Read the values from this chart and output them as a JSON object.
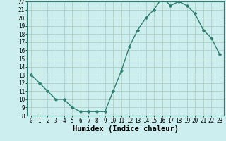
{
  "x": [
    0,
    1,
    2,
    3,
    4,
    5,
    6,
    7,
    8,
    9,
    10,
    11,
    12,
    13,
    14,
    15,
    16,
    17,
    18,
    19,
    20,
    21,
    22,
    23
  ],
  "y": [
    13.0,
    12.0,
    11.0,
    10.0,
    10.0,
    9.0,
    8.5,
    8.5,
    8.5,
    8.5,
    11.0,
    13.5,
    16.5,
    18.5,
    20.0,
    21.0,
    22.5,
    21.5,
    22.0,
    21.5,
    20.5,
    18.5,
    17.5,
    15.5
  ],
  "line_color": "#2e7d6e",
  "marker_color": "#2e7d6e",
  "bg_color": "#cceeee",
  "grid_color": "#aaccbb",
  "xlabel": "Humidex (Indice chaleur)",
  "xlim": [
    -0.5,
    23.5
  ],
  "ylim": [
    8,
    22
  ],
  "yticks": [
    8,
    9,
    10,
    11,
    12,
    13,
    14,
    15,
    16,
    17,
    18,
    19,
    20,
    21,
    22
  ],
  "xticks": [
    0,
    1,
    2,
    3,
    4,
    5,
    6,
    7,
    8,
    9,
    10,
    11,
    12,
    13,
    14,
    15,
    16,
    17,
    18,
    19,
    20,
    21,
    22,
    23
  ],
  "xtick_labels": [
    "0",
    "1",
    "2",
    "3",
    "4",
    "5",
    "6",
    "7",
    "8",
    "9",
    "10",
    "11",
    "12",
    "13",
    "14",
    "15",
    "16",
    "17",
    "18",
    "19",
    "20",
    "21",
    "22",
    "23"
  ],
  "xlabel_fontsize": 7.5,
  "tick_fontsize": 5.5,
  "marker_size": 2.5,
  "line_width": 1.0
}
